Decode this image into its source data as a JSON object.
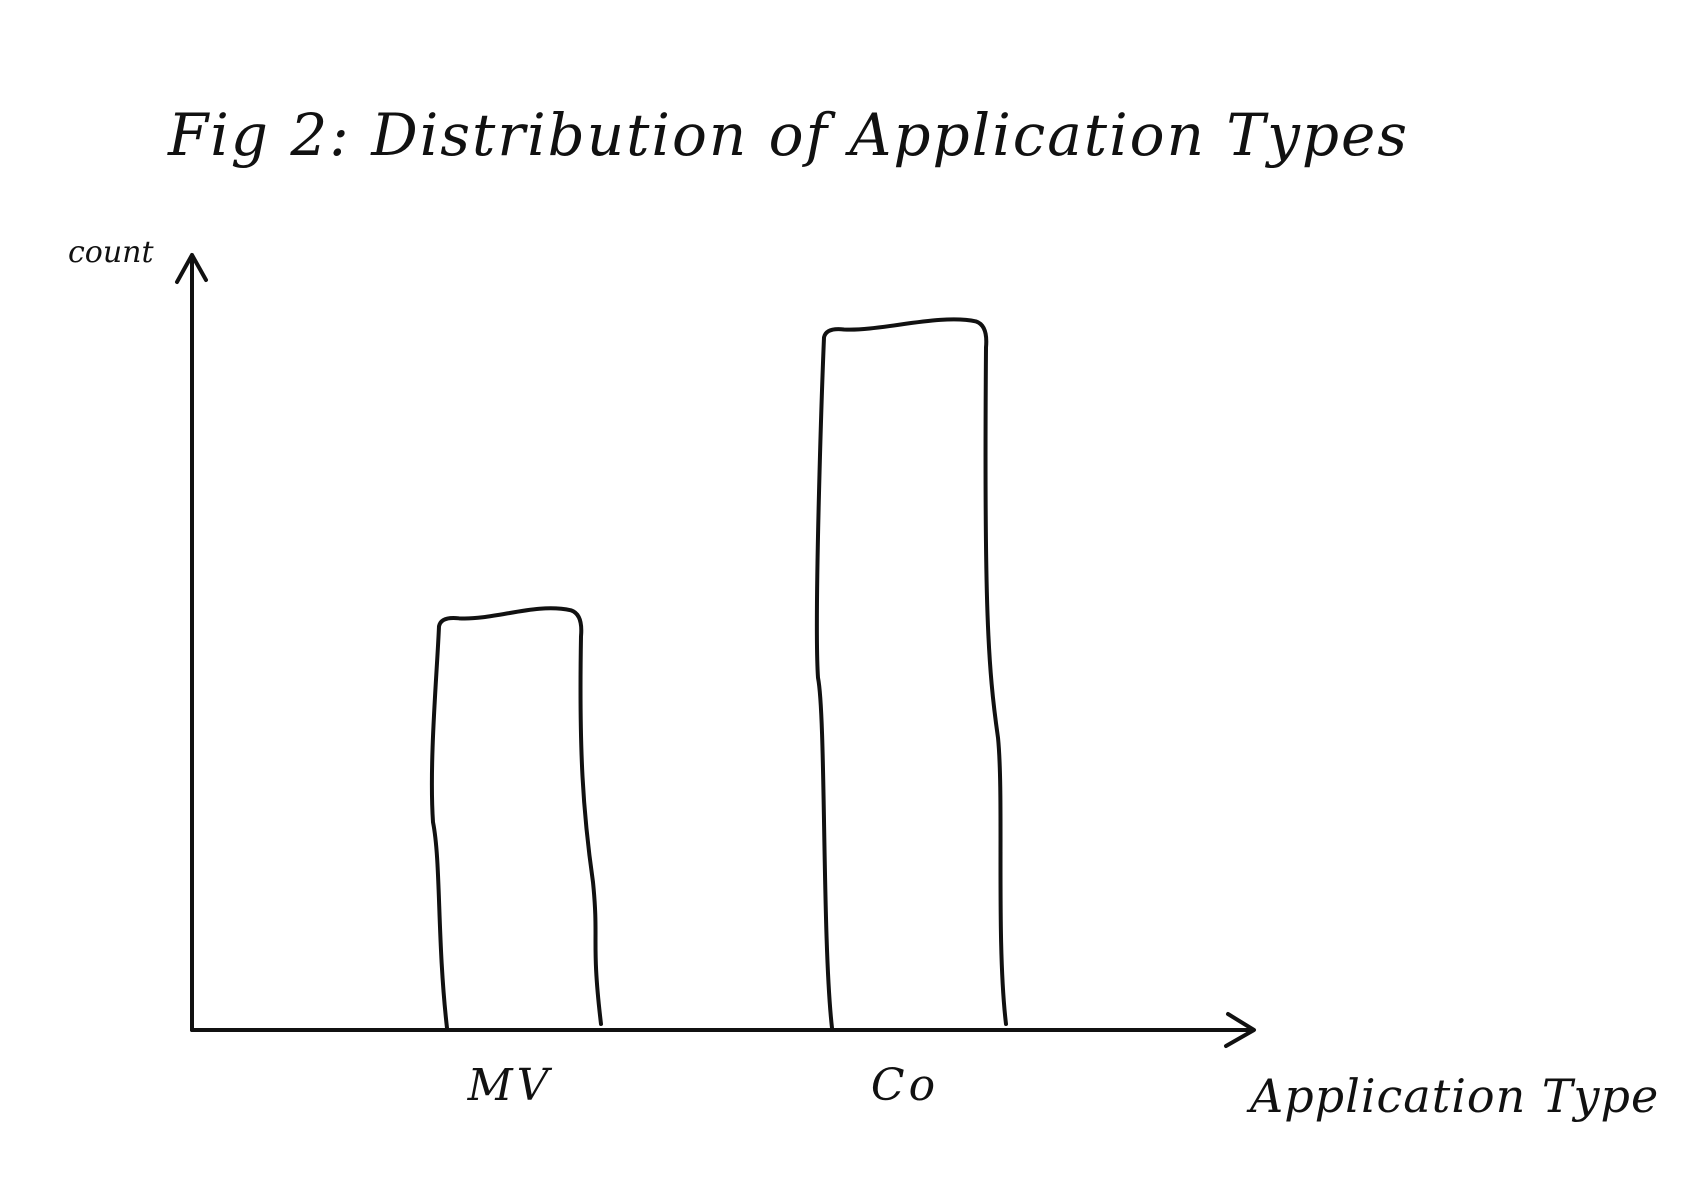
{
  "chart_data": {
    "type": "bar",
    "title": "Fig 2: Distribution of Application Types",
    "xlabel": "Application Type",
    "ylabel": "count",
    "categories": [
      "MV",
      "Co"
    ],
    "values": [
      59,
      100
    ],
    "ylim": [
      0,
      110
    ],
    "grid": false,
    "legend": "none",
    "ink_color": "#111111"
  }
}
